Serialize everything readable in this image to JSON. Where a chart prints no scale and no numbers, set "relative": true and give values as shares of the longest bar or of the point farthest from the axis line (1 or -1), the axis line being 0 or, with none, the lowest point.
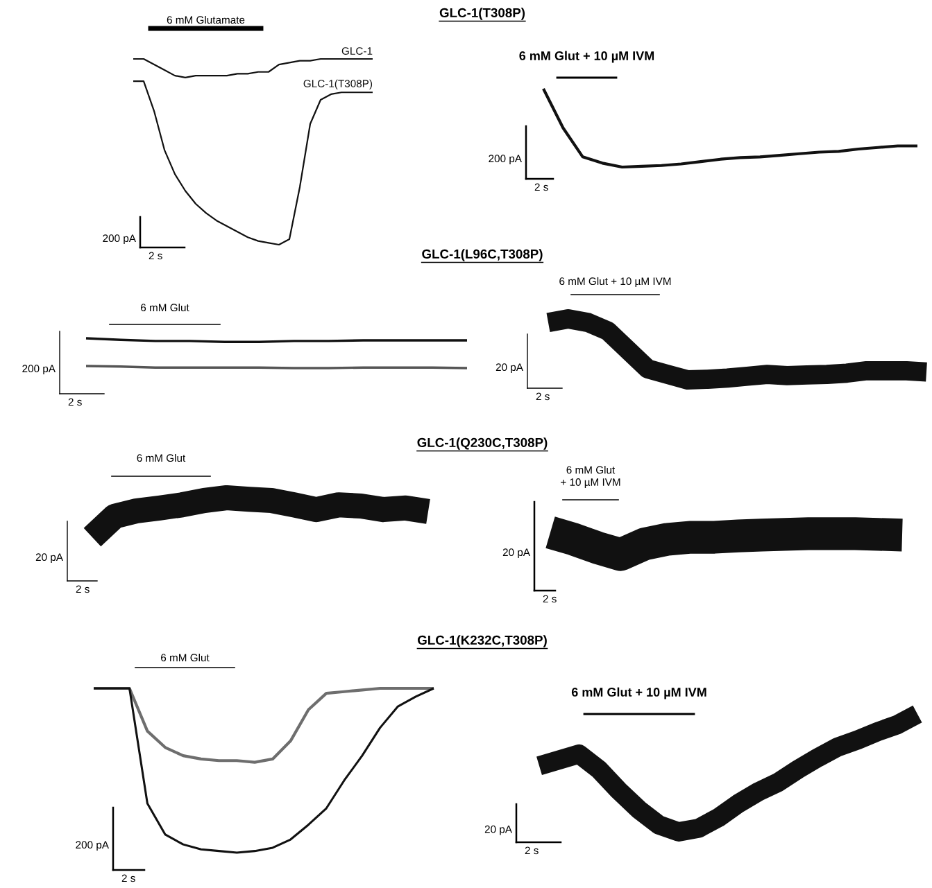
{
  "chart_data": [
    {
      "type": "other",
      "title": "GLC-1(T308P)"
    },
    {
      "type": "line",
      "relative": true,
      "annotations": [
        "6 mM Glutamate",
        "200 pA",
        "2 s"
      ],
      "categories": [
        null,
        null,
        null,
        null,
        null,
        null,
        null,
        null,
        null,
        null,
        null,
        null,
        null,
        null,
        null,
        null,
        null,
        null,
        null,
        null,
        null,
        null,
        null,
        null
      ],
      "series": [
        {
          "name": "GLC-1",
          "color": "#111111",
          "values": [
            1.0,
            1.0,
            0.97,
            0.94,
            0.91,
            0.9,
            0.91,
            0.91,
            0.91,
            0.91,
            0.92,
            0.92,
            0.93,
            0.93,
            0.97,
            0.98,
            0.99,
            0.99,
            1.0,
            1.0,
            1.0,
            1.0,
            1.0,
            1.0
          ]
        },
        {
          "name": "GLC-1(T308P)",
          "color": "#111111",
          "values": [
            0.88,
            0.88,
            0.72,
            0.51,
            0.38,
            0.29,
            0.22,
            0.17,
            0.13,
            0.1,
            0.07,
            0.04,
            0.02,
            0.01,
            0.0,
            0.03,
            0.31,
            0.65,
            0.78,
            0.81,
            0.82,
            0.82,
            0.82,
            0.82
          ]
        }
      ]
    },
    {
      "type": "line",
      "relative": true,
      "annotations": [
        "6 mM Glut + 10 µM IVM",
        "200 pA",
        "2 s"
      ],
      "categories": [
        null,
        null,
        null,
        null,
        null,
        null,
        null,
        null,
        null,
        null,
        null,
        null,
        null,
        null,
        null,
        null,
        null,
        null,
        null,
        null
      ],
      "series": [
        {
          "color": "#111111",
          "values": [
            1.0,
            0.5,
            0.13,
            0.05,
            0.0,
            0.01,
            0.02,
            0.04,
            0.07,
            0.1,
            0.12,
            0.13,
            0.15,
            0.17,
            0.19,
            0.2,
            0.23,
            0.25,
            0.27,
            0.27
          ]
        }
      ]
    },
    {
      "type": "other",
      "title": "GLC-1(L96C,T308P)"
    },
    {
      "type": "line",
      "relative": true,
      "annotations": [
        "6 mM Glut",
        "200 pA",
        "2 s"
      ],
      "categories": [
        null,
        null,
        null,
        null,
        null,
        null,
        null,
        null,
        null,
        null,
        null,
        null
      ],
      "series": [
        {
          "color": "#111111",
          "values": [
            1.0,
            0.95,
            0.91,
            0.91,
            0.88,
            0.88,
            0.91,
            0.91,
            0.93,
            0.93,
            0.93,
            0.93
          ]
        },
        {
          "color": "#555555",
          "values": [
            0.07,
            0.05,
            0.02,
            0.02,
            0.02,
            0.02,
            0.0,
            0.0,
            0.02,
            0.02,
            0.02,
            0.0
          ]
        }
      ]
    },
    {
      "type": "line",
      "relative": true,
      "annotations": [
        "6 mM Glut + 10 µM IVM",
        "20 pA",
        "2 s"
      ],
      "categories": [
        null,
        null,
        null,
        null,
        null,
        null,
        null,
        null,
        null,
        null,
        null,
        null,
        null,
        null,
        null,
        null,
        null,
        null,
        null,
        null
      ],
      "series": [
        {
          "color": "#111111",
          "values": [
            0.94,
            1.0,
            0.94,
            0.8,
            0.49,
            0.18,
            0.09,
            0.0,
            0.01,
            0.03,
            0.06,
            0.09,
            0.07,
            0.08,
            0.09,
            0.11,
            0.15,
            0.15,
            0.15,
            0.13
          ]
        }
      ]
    },
    {
      "type": "other",
      "title": "GLC-1(Q230C,T308P)"
    },
    {
      "type": "line",
      "relative": true,
      "annotations": [
        "6 mM Glut",
        "20 pA",
        "2 s"
      ],
      "categories": [
        null,
        null,
        null,
        null,
        null,
        null,
        null,
        null,
        null,
        null,
        null,
        null,
        null,
        null,
        null,
        null
      ],
      "series": [
        {
          "color": "#111111",
          "values": [
            0.0,
            0.53,
            0.67,
            0.74,
            0.82,
            0.93,
            1.0,
            0.96,
            0.93,
            0.82,
            0.7,
            0.82,
            0.79,
            0.7,
            0.74,
            0.65
          ]
        }
      ]
    },
    {
      "type": "line",
      "relative": true,
      "annotations": [
        "6 mM Glut\n+ 10 µM IVM",
        "20 pA",
        "2 s"
      ],
      "categories": [
        null,
        null,
        null,
        null,
        null,
        null,
        null,
        null,
        null,
        null,
        null,
        null,
        null,
        null,
        null,
        null
      ],
      "series": [
        {
          "color": "#111111",
          "values": [
            1.0,
            0.69,
            0.31,
            0.0,
            0.47,
            0.69,
            0.78,
            0.78,
            0.84,
            0.88,
            0.91,
            0.94,
            0.94,
            0.94,
            0.91,
            0.88
          ]
        }
      ]
    },
    {
      "type": "other",
      "title": "GLC-1(K232C,T308P)"
    },
    {
      "type": "line",
      "relative": true,
      "annotations": [
        "6 mM Glut",
        "200 pA",
        "2 s"
      ],
      "categories": [
        null,
        null,
        null,
        null,
        null,
        null,
        null,
        null,
        null,
        null,
        null,
        null,
        null,
        null,
        null,
        null,
        null,
        null,
        null,
        null
      ],
      "series": [
        {
          "color": "#6e6e6e",
          "values": [
            1.0,
            1.0,
            1.0,
            0.74,
            0.64,
            0.59,
            0.57,
            0.56,
            0.56,
            0.55,
            0.57,
            0.68,
            0.87,
            0.97,
            0.98,
            0.99,
            1.0,
            1.0,
            1.0,
            1.0
          ]
        },
        {
          "color": "#111111",
          "values": [
            1.0,
            1.0,
            1.0,
            0.3,
            0.11,
            0.05,
            0.02,
            0.01,
            0.0,
            0.01,
            0.03,
            0.08,
            0.17,
            0.27,
            0.44,
            0.59,
            0.76,
            0.89,
            0.95,
            1.0
          ]
        }
      ]
    },
    {
      "type": "line",
      "relative": true,
      "annotations": [
        "6 mM Glut + 10 µM IVM",
        "20 pA",
        "2 s"
      ],
      "categories": [
        null,
        null,
        null,
        null,
        null,
        null,
        null,
        null,
        null,
        null,
        null,
        null,
        null,
        null,
        null,
        null,
        null,
        null,
        null,
        null
      ],
      "series": [
        {
          "color": "#111111",
          "values": [
            0.56,
            0.61,
            0.66,
            0.53,
            0.35,
            0.19,
            0.06,
            0.0,
            0.03,
            0.12,
            0.24,
            0.34,
            0.42,
            0.53,
            0.63,
            0.72,
            0.78,
            0.85,
            0.91,
            1.0
          ]
        }
      ]
    }
  ]
}
